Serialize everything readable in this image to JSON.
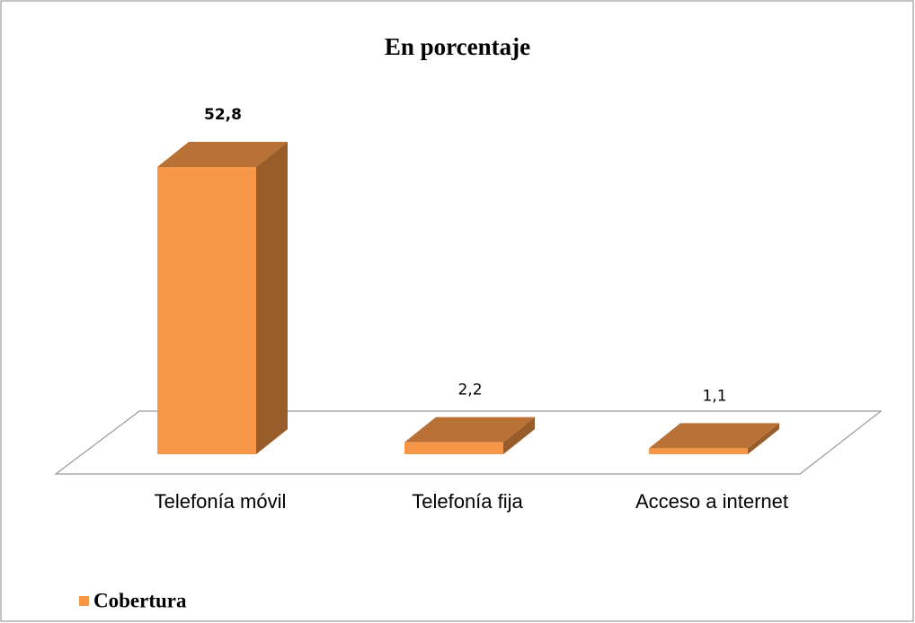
{
  "chart_data": {
    "type": "bar3d",
    "title": "En porcentaje",
    "categories": [
      "Telefonía móvil",
      "Telefonía fija",
      "Acceso a internet"
    ],
    "series": [
      {
        "name": "Cobertura",
        "color": "#f79646",
        "values": [
          52.8,
          2.2,
          1.1
        ],
        "value_labels": [
          "52,8",
          "2,2",
          "1,1"
        ]
      }
    ],
    "legend": "bottom-left"
  }
}
